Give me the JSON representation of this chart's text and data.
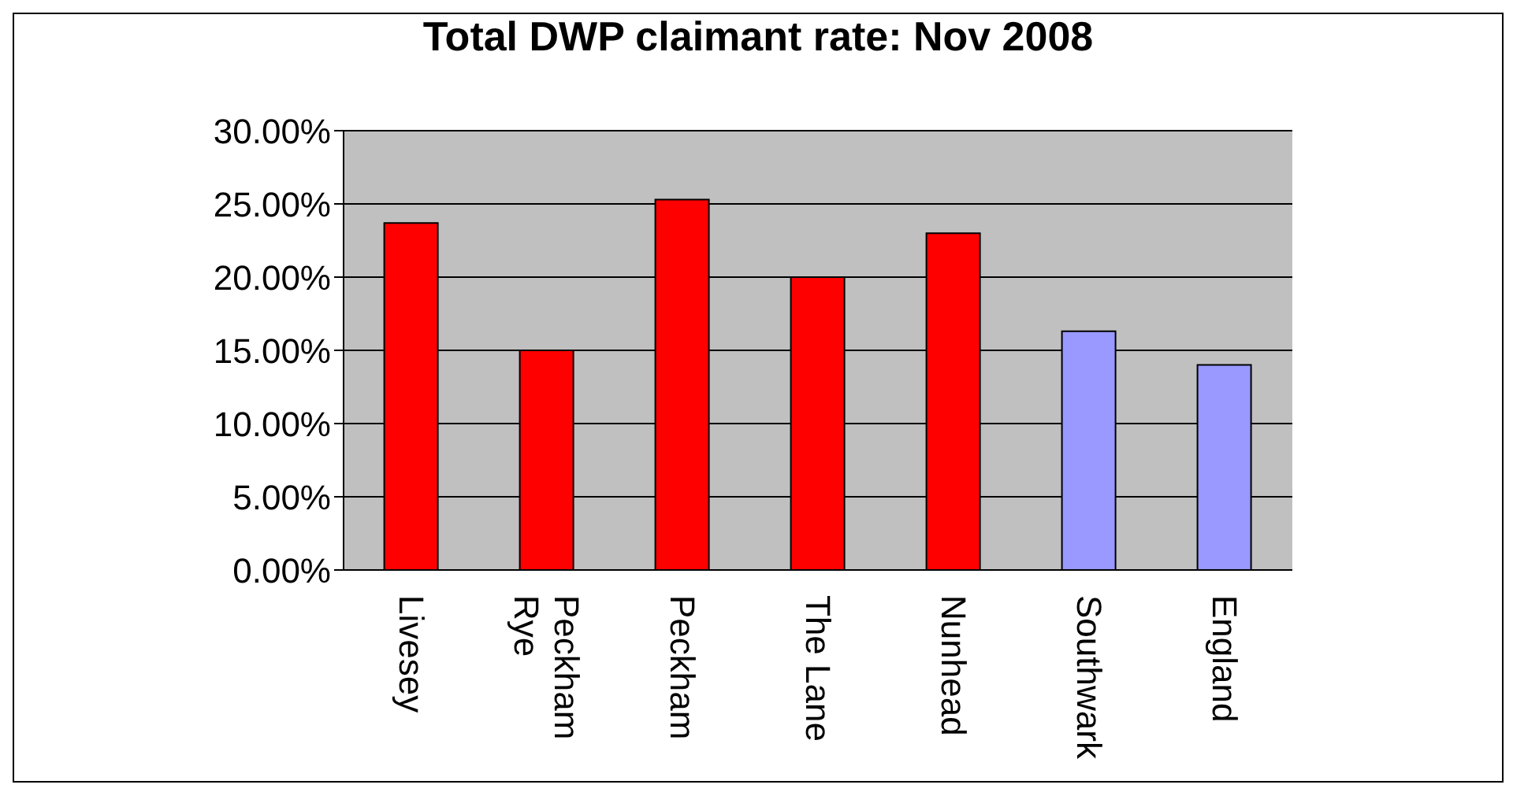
{
  "chart_data": {
    "type": "bar",
    "title": "Total DWP claimant rate: Nov 2008",
    "categories": [
      "Livesey",
      "Peckham Rye",
      "Peckham",
      "The Lane",
      "Nunhead",
      "Southwark",
      "England"
    ],
    "values": [
      23.7,
      15.0,
      25.3,
      20.0,
      23.0,
      16.3,
      14.0
    ],
    "colors": [
      "#ff0000",
      "#ff0000",
      "#ff0000",
      "#ff0000",
      "#ff0000",
      "#9999ff",
      "#9999ff"
    ],
    "ylim": [
      0,
      30
    ],
    "yticks": [
      {
        "value": 0,
        "label": "0.00%"
      },
      {
        "value": 5,
        "label": "5.00%"
      },
      {
        "value": 10,
        "label": "10.00%"
      },
      {
        "value": 15,
        "label": "15.00%"
      },
      {
        "value": 20,
        "label": "20.00%"
      },
      {
        "value": 25,
        "label": "25.00%"
      },
      {
        "value": 30,
        "label": "30.00%"
      }
    ],
    "grid": "y"
  }
}
